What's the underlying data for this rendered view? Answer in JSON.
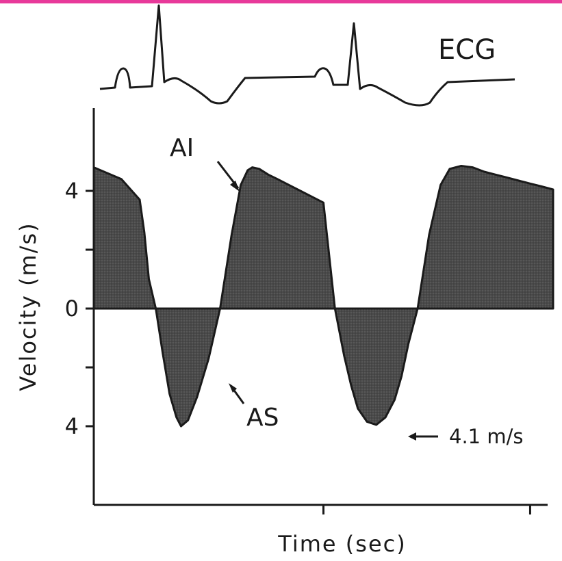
{
  "colors": {
    "border": "#e8399a",
    "ink": "#1a1a1a",
    "fill": "#474747"
  },
  "ecg_label": "ECG",
  "annotations": {
    "ai": "AI",
    "as": "AS",
    "peak": "4.1 m/s"
  },
  "chart_data": {
    "type": "area",
    "title": "",
    "xlabel": "Time (sec)",
    "ylabel": "Velocity (m/s)",
    "yticks": [
      {
        "value": 4,
        "label": "4"
      },
      {
        "value": 2,
        "label": ""
      },
      {
        "value": 0,
        "label": "0"
      },
      {
        "value": -2,
        "label": ""
      },
      {
        "value": -4,
        "label": "4"
      }
    ],
    "ylim": [
      -6.4,
      6.6
    ],
    "xlim": [
      0,
      2
    ],
    "xticks": [
      1,
      1.9
    ],
    "grid": false,
    "series": [
      {
        "name": "",
        "x": [
          0,
          0.12,
          0.2,
          0.22,
          0.24,
          0.27,
          0.3,
          0.33,
          0.36,
          0.38,
          0.41,
          0.45,
          0.5,
          0.55,
          0.6,
          0.64,
          0.67,
          0.69,
          0.72,
          0.76,
          0.8,
          0.85,
          0.9,
          0.95,
          1.0,
          1.05,
          1.09,
          1.12,
          1.15,
          1.19,
          1.23,
          1.27,
          1.31,
          1.34,
          1.37,
          1.41,
          1.46,
          1.51,
          1.55,
          1.6,
          1.65,
          1.7,
          1.75,
          1.8,
          1.85,
          1.9,
          1.95,
          2.0
        ],
        "y": [
          4.8,
          4.4,
          3.7,
          2.6,
          1.0,
          0.0,
          -1.5,
          -2.9,
          -3.7,
          -4.0,
          -3.8,
          -3.0,
          -1.7,
          0.0,
          2.5,
          4.2,
          4.7,
          4.8,
          4.75,
          4.55,
          4.4,
          4.2,
          4.0,
          3.8,
          3.6,
          0.0,
          -1.6,
          -2.6,
          -3.4,
          -3.85,
          -3.95,
          -3.7,
          -3.1,
          -2.3,
          -1.2,
          0.0,
          2.5,
          4.2,
          4.75,
          4.85,
          4.8,
          4.65,
          4.55,
          4.45,
          4.35,
          4.25,
          4.15,
          4.05
        ]
      }
    ],
    "annotations": [
      "AI",
      "AS",
      "4.1 m/s"
    ],
    "peak_value": -4.1
  }
}
